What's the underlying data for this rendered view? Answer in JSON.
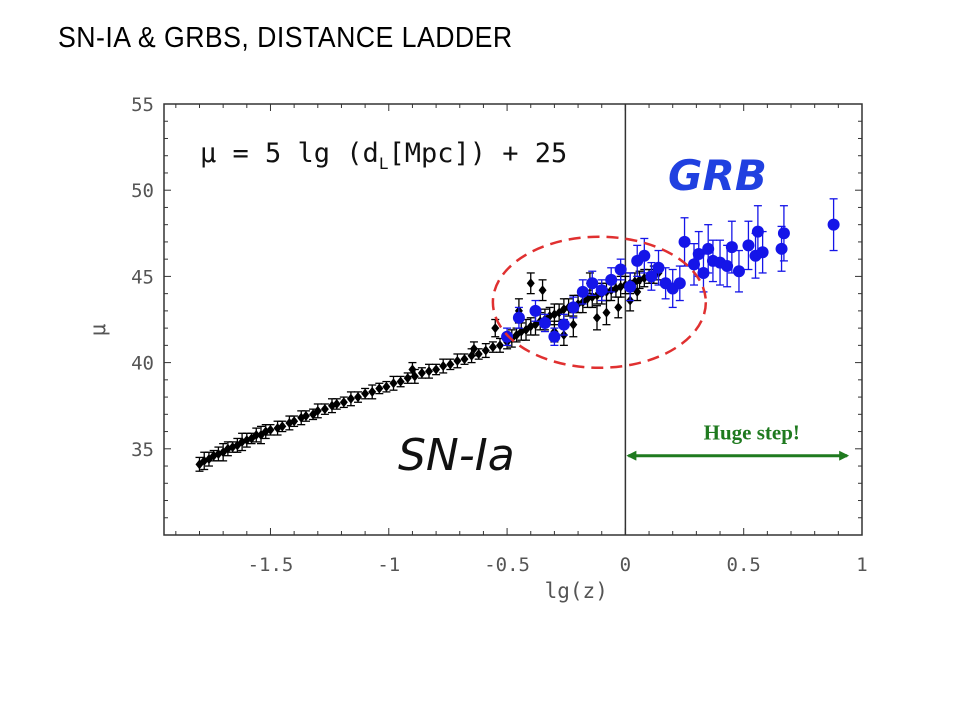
{
  "slide": {
    "title": "SN-IA & GRBS, DISTANCE LADDER"
  },
  "chart_data": {
    "type": "scatter",
    "title": "",
    "xlabel": "lg(z)",
    "ylabel": "μ",
    "xlim": [
      -1.95,
      1.0
    ],
    "ylim": [
      30.0,
      55.0
    ],
    "xticks": [
      -1.5,
      -1.0,
      -0.5,
      0.0,
      0.5,
      1.0
    ],
    "xtick_labels": [
      "-1.5",
      "-1",
      "-0.5",
      "0",
      "0.5",
      "1"
    ],
    "yticks": [
      35,
      40,
      45,
      50,
      55
    ],
    "ytick_labels": [
      "35",
      "40",
      "45",
      "50",
      "55"
    ],
    "grid": false,
    "vertical_line_x": 0.0,
    "colors": {
      "grb": "#1515e8",
      "sn": "#000000",
      "circle": "#e03030",
      "arrow": "#1f7a1f"
    },
    "annotations": {
      "formula_main": "μ = 5 lg (d",
      "formula_sub": "L",
      "formula_rest": "[Mpc]) + 25",
      "grb_label": "GRB",
      "sn_label": "SN-Ia",
      "arrow_label": "Huge step!",
      "arrow_from_x": 0.0,
      "arrow_to_x": 0.95,
      "arrow_y": 34.6,
      "circle_center": [
        -0.11,
        43.5
      ],
      "circle_radii": [
        0.45,
        3.8
      ]
    },
    "series": [
      {
        "name": "SN-Ia",
        "marker": "diamond",
        "points": [
          [
            -1.8,
            34.1,
            0.4
          ],
          [
            -1.78,
            34.3,
            0.5
          ],
          [
            -1.76,
            34.4,
            0.4
          ],
          [
            -1.74,
            34.6,
            0.3
          ],
          [
            -1.72,
            34.7,
            0.4
          ],
          [
            -1.7,
            34.8,
            0.5
          ],
          [
            -1.68,
            35.0,
            0.4
          ],
          [
            -1.66,
            35.1,
            0.3
          ],
          [
            -1.64,
            35.2,
            0.4
          ],
          [
            -1.62,
            35.4,
            0.5
          ],
          [
            -1.6,
            35.5,
            0.4
          ],
          [
            -1.58,
            35.6,
            0.3
          ],
          [
            -1.56,
            35.8,
            0.4
          ],
          [
            -1.54,
            35.8,
            0.5
          ],
          [
            -1.52,
            36.0,
            0.4
          ],
          [
            -1.5,
            36.1,
            0.3
          ],
          [
            -1.47,
            36.2,
            0.4
          ],
          [
            -1.45,
            36.3,
            0.3
          ],
          [
            -1.42,
            36.5,
            0.4
          ],
          [
            -1.4,
            36.6,
            0.3
          ],
          [
            -1.37,
            36.8,
            0.4
          ],
          [
            -1.35,
            36.9,
            0.3
          ],
          [
            -1.32,
            37.0,
            0.3
          ],
          [
            -1.3,
            37.2,
            0.4
          ],
          [
            -1.27,
            37.3,
            0.3
          ],
          [
            -1.24,
            37.5,
            0.4
          ],
          [
            -1.22,
            37.6,
            0.3
          ],
          [
            -1.19,
            37.7,
            0.3
          ],
          [
            -1.16,
            37.9,
            0.4
          ],
          [
            -1.13,
            38.0,
            0.3
          ],
          [
            -1.1,
            38.2,
            0.3
          ],
          [
            -1.07,
            38.3,
            0.4
          ],
          [
            -1.04,
            38.5,
            0.3
          ],
          [
            -1.01,
            38.6,
            0.3
          ],
          [
            -0.98,
            38.8,
            0.4
          ],
          [
            -0.95,
            38.9,
            0.3
          ],
          [
            -0.92,
            39.1,
            0.3
          ],
          [
            -0.89,
            39.2,
            0.4
          ],
          [
            -0.86,
            39.4,
            0.3
          ],
          [
            -0.83,
            39.5,
            0.4
          ],
          [
            -0.8,
            39.6,
            0.3
          ],
          [
            -0.77,
            39.8,
            0.4
          ],
          [
            -0.74,
            39.9,
            0.3
          ],
          [
            -0.71,
            40.1,
            0.4
          ],
          [
            -0.68,
            40.2,
            0.3
          ],
          [
            -0.65,
            40.4,
            0.4
          ],
          [
            -0.62,
            40.5,
            0.3
          ],
          [
            -0.59,
            40.7,
            0.4
          ],
          [
            -0.56,
            40.9,
            0.3
          ],
          [
            -0.53,
            41.0,
            0.4
          ],
          [
            -0.5,
            41.2,
            0.4
          ],
          [
            -0.48,
            41.4,
            0.5
          ],
          [
            -0.46,
            41.6,
            0.4
          ],
          [
            -0.44,
            41.8,
            0.5
          ],
          [
            -0.42,
            41.9,
            0.6
          ],
          [
            -0.4,
            42.1,
            0.5
          ],
          [
            -0.38,
            42.2,
            0.6
          ],
          [
            -0.36,
            42.4,
            0.5
          ],
          [
            -0.34,
            42.5,
            0.6
          ],
          [
            -0.32,
            42.7,
            0.5
          ],
          [
            -0.3,
            42.8,
            0.6
          ],
          [
            -0.28,
            42.9,
            0.5
          ],
          [
            -0.26,
            43.1,
            0.6
          ],
          [
            -0.24,
            43.2,
            0.5
          ],
          [
            -0.22,
            43.3,
            0.6
          ],
          [
            -0.2,
            43.4,
            0.5
          ],
          [
            -0.18,
            43.5,
            0.6
          ],
          [
            -0.16,
            43.7,
            0.5
          ],
          [
            -0.14,
            43.8,
            0.6
          ],
          [
            -0.12,
            43.9,
            0.5
          ],
          [
            -0.1,
            44.0,
            0.6
          ],
          [
            -0.08,
            44.1,
            0.5
          ],
          [
            -0.06,
            44.2,
            0.6
          ],
          [
            -0.04,
            44.3,
            0.5
          ],
          [
            -0.02,
            44.4,
            0.6
          ],
          [
            0.0,
            44.5,
            0.5
          ],
          [
            0.02,
            44.6,
            0.6
          ],
          [
            0.04,
            44.7,
            0.5
          ],
          [
            0.06,
            44.8,
            0.5
          ],
          [
            0.08,
            44.9,
            0.5
          ],
          [
            0.1,
            45.0,
            0.4
          ],
          [
            0.12,
            45.1,
            0.5
          ],
          [
            0.14,
            45.2,
            0.4
          ],
          [
            -0.45,
            43.0,
            0.7
          ],
          [
            -0.35,
            44.2,
            0.6
          ],
          [
            -0.3,
            41.8,
            0.6
          ],
          [
            -0.22,
            42.2,
            0.7
          ],
          [
            -0.15,
            44.6,
            0.6
          ],
          [
            -0.08,
            42.9,
            0.7
          ],
          [
            -0.03,
            43.2,
            0.6
          ],
          [
            0.02,
            43.6,
            0.6
          ],
          [
            -0.4,
            44.6,
            0.6
          ],
          [
            -0.55,
            42.0,
            0.5
          ],
          [
            -0.26,
            41.6,
            0.6
          ],
          [
            -0.12,
            42.6,
            0.7
          ],
          [
            0.05,
            44.1,
            0.5
          ],
          [
            -0.64,
            40.8,
            0.4
          ],
          [
            -0.9,
            39.6,
            0.4
          ]
        ]
      },
      {
        "name": "GRB",
        "marker": "circle",
        "points": [
          [
            -0.5,
            41.5,
            0.5
          ],
          [
            -0.45,
            42.6,
            0.6
          ],
          [
            -0.38,
            43.0,
            0.6
          ],
          [
            -0.34,
            42.3,
            0.5
          ],
          [
            -0.3,
            41.5,
            0.5
          ],
          [
            -0.26,
            42.2,
            0.6
          ],
          [
            -0.22,
            43.2,
            0.6
          ],
          [
            -0.18,
            44.1,
            0.7
          ],
          [
            -0.14,
            44.6,
            0.7
          ],
          [
            -0.1,
            44.2,
            0.6
          ],
          [
            -0.06,
            44.8,
            0.7
          ],
          [
            -0.02,
            45.4,
            0.6
          ],
          [
            0.02,
            44.4,
            0.8
          ],
          [
            0.05,
            45.9,
            0.9
          ],
          [
            0.08,
            46.2,
            1.0
          ],
          [
            0.11,
            45.0,
            0.8
          ],
          [
            0.14,
            45.5,
            1.0
          ],
          [
            0.17,
            44.6,
            0.9
          ],
          [
            0.2,
            44.3,
            1.1
          ],
          [
            0.23,
            44.6,
            1.0
          ],
          [
            0.25,
            47.0,
            1.4
          ],
          [
            0.29,
            45.7,
            1.2
          ],
          [
            0.31,
            46.3,
            1.3
          ],
          [
            0.33,
            45.2,
            1.1
          ],
          [
            0.35,
            46.6,
            1.4
          ],
          [
            0.37,
            45.9,
            1.2
          ],
          [
            0.4,
            45.8,
            1.3
          ],
          [
            0.43,
            45.6,
            1.2
          ],
          [
            0.45,
            46.7,
            1.5
          ],
          [
            0.48,
            45.3,
            1.2
          ],
          [
            0.52,
            46.8,
            1.4
          ],
          [
            0.55,
            46.2,
            1.3
          ],
          [
            0.56,
            47.6,
            1.5
          ],
          [
            0.58,
            46.4,
            1.2
          ],
          [
            0.66,
            46.6,
            1.3
          ],
          [
            0.67,
            47.5,
            1.6
          ],
          [
            0.88,
            48.0,
            1.5
          ]
        ]
      }
    ]
  }
}
